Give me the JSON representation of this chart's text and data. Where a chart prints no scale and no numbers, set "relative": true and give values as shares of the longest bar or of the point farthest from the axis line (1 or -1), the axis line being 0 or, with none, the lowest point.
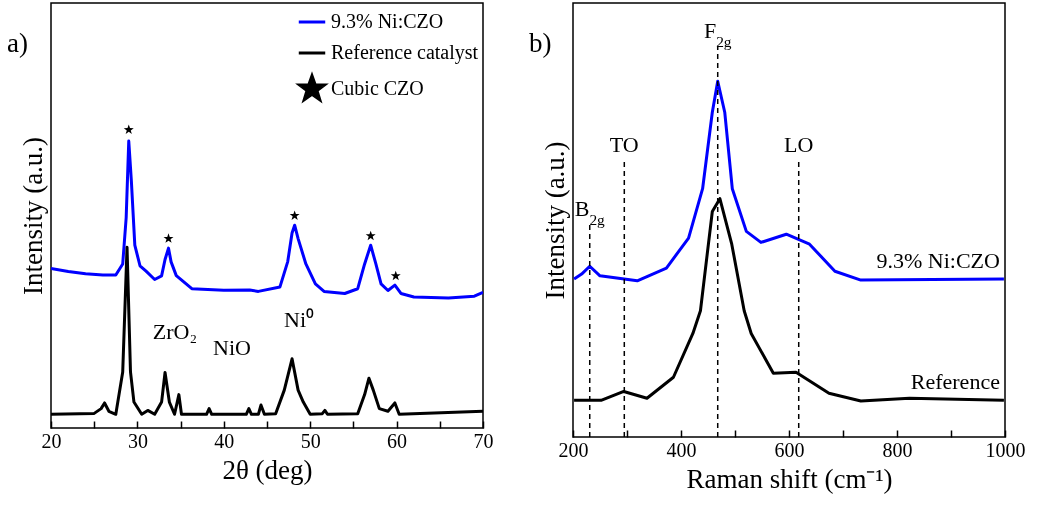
{
  "chart_data": [
    {
      "type": "line",
      "title": "a)",
      "xlabel": "2θ (deg)",
      "ylabel": "Intensity (a.u.)",
      "relative": true,
      "xlim": [
        20,
        70
      ],
      "xticks": [
        20,
        {
          "value": 25,
          "label": null
        },
        30,
        {
          "value": 35,
          "label": null
        },
        40,
        {
          "value": 45,
          "label": null
        },
        50,
        {
          "value": 55,
          "label": null
        },
        60,
        {
          "value": 65,
          "label": null
        },
        70
      ],
      "legend": "top right",
      "grid": false,
      "series": [
        {
          "name": "9.3% Ni:CZO",
          "color": "#0000ff",
          "x": [
            20,
            22,
            24,
            26,
            27.5,
            28.3,
            28.7,
            29.0,
            29.3,
            29.7,
            30.3,
            31,
            32,
            32.8,
            33.2,
            33.6,
            33.9,
            34.5,
            36.3,
            40,
            43,
            44,
            46.5,
            47.4,
            47.9,
            48.2,
            48.6,
            49.5,
            50.6,
            51.6,
            54,
            55.5,
            56.3,
            57.0,
            57.6,
            58.2,
            59,
            59.8,
            60.5,
            62,
            66,
            69,
            70
          ],
          "values": [
            0.535,
            0.525,
            0.517,
            0.513,
            0.513,
            0.55,
            0.705,
            0.962,
            0.829,
            0.613,
            0.544,
            0.526,
            0.498,
            0.51,
            0.565,
            0.603,
            0.557,
            0.511,
            0.467,
            0.462,
            0.463,
            0.458,
            0.473,
            0.558,
            0.654,
            0.68,
            0.635,
            0.55,
            0.483,
            0.458,
            0.451,
            0.467,
            0.55,
            0.613,
            0.55,
            0.483,
            0.461,
            0.479,
            0.451,
            0.439,
            0.436,
            0.442,
            0.455
          ]
        },
        {
          "name": "Reference catalyst",
          "color": "#000000",
          "x": [
            20,
            25,
            25.8,
            26.2,
            26.7,
            27.5,
            28.3,
            28.8,
            29.2,
            29.6,
            30.5,
            31.2,
            32,
            32.8,
            33.2,
            33.7,
            34.3,
            34.8,
            35.1,
            38,
            38.3,
            38.6,
            42.6,
            42.9,
            43.2,
            44,
            44.3,
            44.7,
            46,
            47.0,
            47.9,
            48.6,
            49.2,
            50,
            51.4,
            51.7,
            52,
            55.5,
            56.3,
            56.8,
            57.3,
            58,
            59,
            59.8,
            60.3,
            70
          ],
          "values": [
            0.046,
            0.049,
            0.065,
            0.084,
            0.056,
            0.046,
            0.188,
            0.606,
            0.188,
            0.087,
            0.046,
            0.059,
            0.046,
            0.087,
            0.186,
            0.087,
            0.046,
            0.112,
            0.046,
            0.046,
            0.065,
            0.046,
            0.046,
            0.065,
            0.046,
            0.046,
            0.077,
            0.046,
            0.048,
            0.127,
            0.232,
            0.127,
            0.087,
            0.046,
            0.048,
            0.059,
            0.046,
            0.048,
            0.112,
            0.167,
            0.127,
            0.065,
            0.056,
            0.084,
            0.046,
            0.056
          ]
        },
        {
          "name": "Cubic CZO",
          "type": "scatter",
          "marker": "star",
          "color": "#000000",
          "x": [
            29.0,
            33.6,
            48.2,
            57.0,
            59.9
          ],
          "values": [
            1,
            0.635,
            0.712,
            0.644,
            0.51
          ]
        }
      ],
      "annotations": [
        "ZrO₂",
        "NiO",
        "Ni⁰"
      ]
    },
    {
      "type": "line",
      "title": "b)",
      "xlabel": "Raman shift (cm⁻¹)",
      "ylabel": "Intensity (a.u.)",
      "relative": true,
      "xlim": [
        200,
        1000
      ],
      "xticks": [
        200,
        {
          "value": 300,
          "label": null
        },
        400,
        {
          "value": 500,
          "label": null
        },
        600,
        {
          "value": 700,
          "label": null
        },
        800,
        {
          "value": 900,
          "label": null
        },
        1000
      ],
      "legend": false,
      "grid": false,
      "series": [
        {
          "name": "9.3% Ni:CZO",
          "color": "#0000ff",
          "x": [
            202,
            216,
            231,
            250,
            319,
            373,
            414,
            440,
            458,
            468,
            481,
            495,
            521,
            548,
            595,
            638,
            685,
            733,
            998
          ],
          "values": [
            0.444,
            0.458,
            0.48,
            0.453,
            0.439,
            0.475,
            0.559,
            0.698,
            0.913,
            1,
            0.913,
            0.698,
            0.578,
            0.547,
            0.57,
            0.542,
            0.466,
            0.441,
            0.444
          ]
        },
        {
          "name": "Reference",
          "color": "#000000",
          "x": [
            202,
            252,
            294,
            337,
            386,
            422,
            436,
            458,
            472,
            494,
            517,
            530,
            571,
            613,
            674,
            733,
            823,
            998
          ],
          "values": [
            0.103,
            0.103,
            0.128,
            0.109,
            0.168,
            0.291,
            0.355,
            0.634,
            0.67,
            0.542,
            0.355,
            0.291,
            0.179,
            0.182,
            0.123,
            0.101,
            0.109,
            0.103
          ]
        }
      ],
      "ref_lines": [
        {
          "axis": "x",
          "value": 231,
          "label": "B$_{2g}$",
          "color": "#000000",
          "line_style": "dashed"
        },
        {
          "axis": "x",
          "value": 295,
          "label": "TO",
          "color": "#000000",
          "line_style": "dashed"
        },
        {
          "axis": "x",
          "value": 468,
          "label": "F$_{2g}$",
          "color": "#000000",
          "line_style": "dashed"
        },
        {
          "axis": "x",
          "value": 618,
          "label": "LO",
          "color": "#000000",
          "line_style": "dashed"
        }
      ]
    }
  ]
}
